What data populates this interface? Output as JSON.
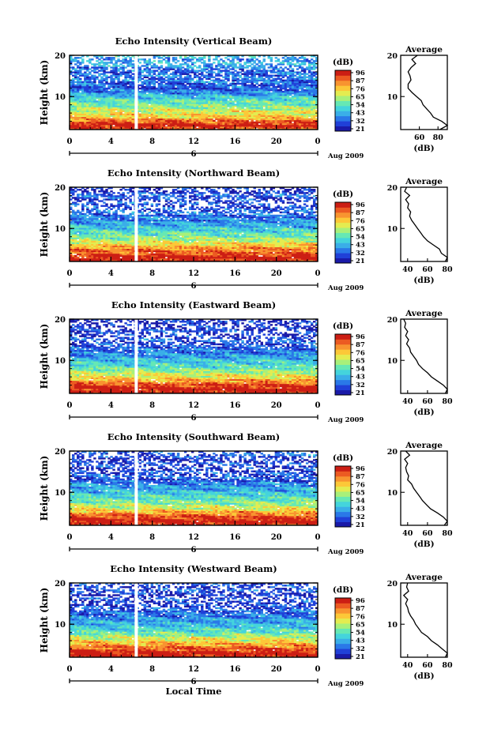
{
  "x_axis_title": "Local Time",
  "colorbar_unit": "(dB)",
  "colorbar_ticks": [
    "96",
    "87",
    "76",
    "65",
    "54",
    "43",
    "32",
    "21"
  ],
  "colormap": [
    "#1a1aa8",
    "#2040d8",
    "#2a78e8",
    "#3aaee8",
    "#44d4dc",
    "#66e8b4",
    "#a8f07a",
    "#e4ec50",
    "#fcc838",
    "#f89430",
    "#ec5a22",
    "#cc1e14"
  ],
  "chart_data": [
    {
      "type": "heatmap",
      "title": "Echo Intensity (Vertical Beam)",
      "ylabel": "Height (km)",
      "xlabel": "Local Time",
      "x_ticks": [
        "0",
        "4",
        "8",
        "12",
        "16",
        "20",
        "0"
      ],
      "xlim": [
        0,
        24
      ],
      "ylim": [
        2,
        20
      ],
      "y_ticks": [
        "20",
        "10"
      ],
      "date_marker": "6",
      "date_label": "Aug 2009",
      "colorbar": {
        "label": "(dB)",
        "range": [
          21,
          98
        ],
        "ticks": [
          "96",
          "87",
          "76",
          "65",
          "54",
          "43",
          "32",
          "21"
        ]
      },
      "data_gap_hours": 6.3,
      "average_profile": {
        "title": "Average",
        "xlabel": "(dB)",
        "x_ticks": [
          "60",
          "80"
        ],
        "xlim": [
          40,
          90
        ],
        "y_ticks": [
          "20",
          "10"
        ],
        "ylim": [
          2,
          20
        ],
        "heights": [
          2,
          3,
          4,
          5,
          6,
          7,
          8,
          9,
          10,
          11,
          12,
          13,
          14,
          15,
          16,
          17,
          18,
          19,
          20
        ],
        "values": [
          82,
          90,
          84,
          75,
          72,
          68,
          64,
          62,
          57,
          52,
          48,
          48,
          51,
          50,
          48,
          51,
          56,
          52,
          58
        ]
      }
    },
    {
      "type": "heatmap",
      "title": "Echo Intensity (Northward Beam)",
      "ylabel": "Height (km)",
      "xlabel": "Local Time",
      "x_ticks": [
        "0",
        "4",
        "8",
        "12",
        "16",
        "20",
        "0"
      ],
      "xlim": [
        0,
        24
      ],
      "ylim": [
        2,
        20
      ],
      "y_ticks": [
        "20",
        "10"
      ],
      "date_marker": "6",
      "date_label": "Aug 2009",
      "colorbar": {
        "label": "(dB)",
        "range": [
          21,
          98
        ],
        "ticks": [
          "96",
          "87",
          "76",
          "65",
          "54",
          "43",
          "32",
          "21"
        ]
      },
      "data_gap_hours": 6.3,
      "average_profile": {
        "title": "Average",
        "xlabel": "(dB)",
        "x_ticks": [
          "40",
          "60",
          "80"
        ],
        "xlim": [
          33,
          80
        ],
        "y_ticks": [
          "20",
          "10"
        ],
        "ylim": [
          2,
          20
        ],
        "heights": [
          2,
          3,
          4,
          5,
          6,
          7,
          8,
          9,
          10,
          11,
          12,
          13,
          14,
          15,
          16,
          17,
          18,
          19,
          20
        ],
        "values": [
          78,
          80,
          74,
          72,
          66,
          60,
          56,
          53,
          50,
          47,
          44,
          42,
          43,
          40,
          41,
          38,
          42,
          37,
          39
        ]
      }
    },
    {
      "type": "heatmap",
      "title": "Echo Intensity (Eastward Beam)",
      "ylabel": "Height (km)",
      "xlabel": "Local Time",
      "x_ticks": [
        "0",
        "4",
        "8",
        "12",
        "16",
        "20",
        "0"
      ],
      "xlim": [
        0,
        24
      ],
      "ylim": [
        2,
        20
      ],
      "y_ticks": [
        "20",
        "10"
      ],
      "date_marker": "6",
      "date_label": "Aug 2009",
      "colorbar": {
        "label": "(dB)",
        "range": [
          21,
          98
        ],
        "ticks": [
          "96",
          "87",
          "76",
          "65",
          "54",
          "43",
          "32",
          "21"
        ]
      },
      "data_gap_hours": 6.3,
      "average_profile": {
        "title": "Average",
        "xlabel": "(dB)",
        "x_ticks": [
          "40",
          "60",
          "80"
        ],
        "xlim": [
          33,
          80
        ],
        "y_ticks": [
          "20",
          "10"
        ],
        "ylim": [
          2,
          20
        ],
        "heights": [
          2,
          3,
          4,
          5,
          6,
          7,
          8,
          9,
          10,
          11,
          12,
          13,
          14,
          15,
          16,
          17,
          18,
          19,
          20
        ],
        "values": [
          78,
          80,
          76,
          70,
          64,
          60,
          55,
          51,
          49,
          46,
          43,
          42,
          39,
          41,
          38,
          40,
          37,
          38,
          36
        ]
      }
    },
    {
      "type": "heatmap",
      "title": "Echo Intensity (Southward Beam)",
      "ylabel": "Height (km)",
      "xlabel": "Local Time",
      "x_ticks": [
        "0",
        "4",
        "8",
        "12",
        "16",
        "20",
        "0"
      ],
      "xlim": [
        0,
        24
      ],
      "ylim": [
        2,
        20
      ],
      "y_ticks": [
        "20",
        "10"
      ],
      "date_marker": "6",
      "date_label": "Aug 2009",
      "colorbar": {
        "label": "(dB)",
        "range": [
          21,
          98
        ],
        "ticks": [
          "96",
          "87",
          "76",
          "65",
          "54",
          "43",
          "32",
          "21"
        ]
      },
      "data_gap_hours": 6.3,
      "average_profile": {
        "title": "Average",
        "xlabel": "(dB)",
        "x_ticks": [
          "40",
          "60",
          "80"
        ],
        "xlim": [
          33,
          80
        ],
        "y_ticks": [
          "20",
          "10"
        ],
        "ylim": [
          2,
          20
        ],
        "heights": [
          2,
          3,
          4,
          5,
          6,
          7,
          8,
          9,
          10,
          11,
          12,
          13,
          14,
          15,
          16,
          17,
          18,
          19,
          20
        ],
        "values": [
          77,
          80,
          76,
          70,
          63,
          59,
          55,
          52,
          49,
          46,
          44,
          40,
          41,
          39,
          38,
          40,
          37,
          42,
          38
        ]
      }
    },
    {
      "type": "heatmap",
      "title": "Echo Intensity (Westward Beam)",
      "ylabel": "Height (km)",
      "xlabel": "Local Time",
      "x_ticks": [
        "0",
        "4",
        "8",
        "12",
        "16",
        "20",
        "0"
      ],
      "xlim": [
        0,
        24
      ],
      "ylim": [
        2,
        20
      ],
      "y_ticks": [
        "20",
        "10"
      ],
      "date_marker": "6",
      "date_label": "Aug 2009",
      "colorbar": {
        "label": "(dB)",
        "range": [
          21,
          98
        ],
        "ticks": [
          "96",
          "87",
          "76",
          "65",
          "54",
          "43",
          "32",
          "21"
        ]
      },
      "data_gap_hours": 6.3,
      "average_profile": {
        "title": "Average",
        "xlabel": "(dB)",
        "x_ticks": [
          "40",
          "60",
          "80"
        ],
        "xlim": [
          33,
          80
        ],
        "y_ticks": [
          "20",
          "10"
        ],
        "ylim": [
          2,
          20
        ],
        "heights": [
          2,
          3,
          4,
          5,
          6,
          7,
          8,
          9,
          10,
          11,
          12,
          13,
          14,
          15,
          16,
          17,
          18,
          19,
          20
        ],
        "values": [
          78,
          80,
          75,
          70,
          64,
          60,
          54,
          51,
          48,
          46,
          43,
          41,
          40,
          38,
          40,
          36,
          41,
          39,
          40
        ]
      }
    }
  ]
}
